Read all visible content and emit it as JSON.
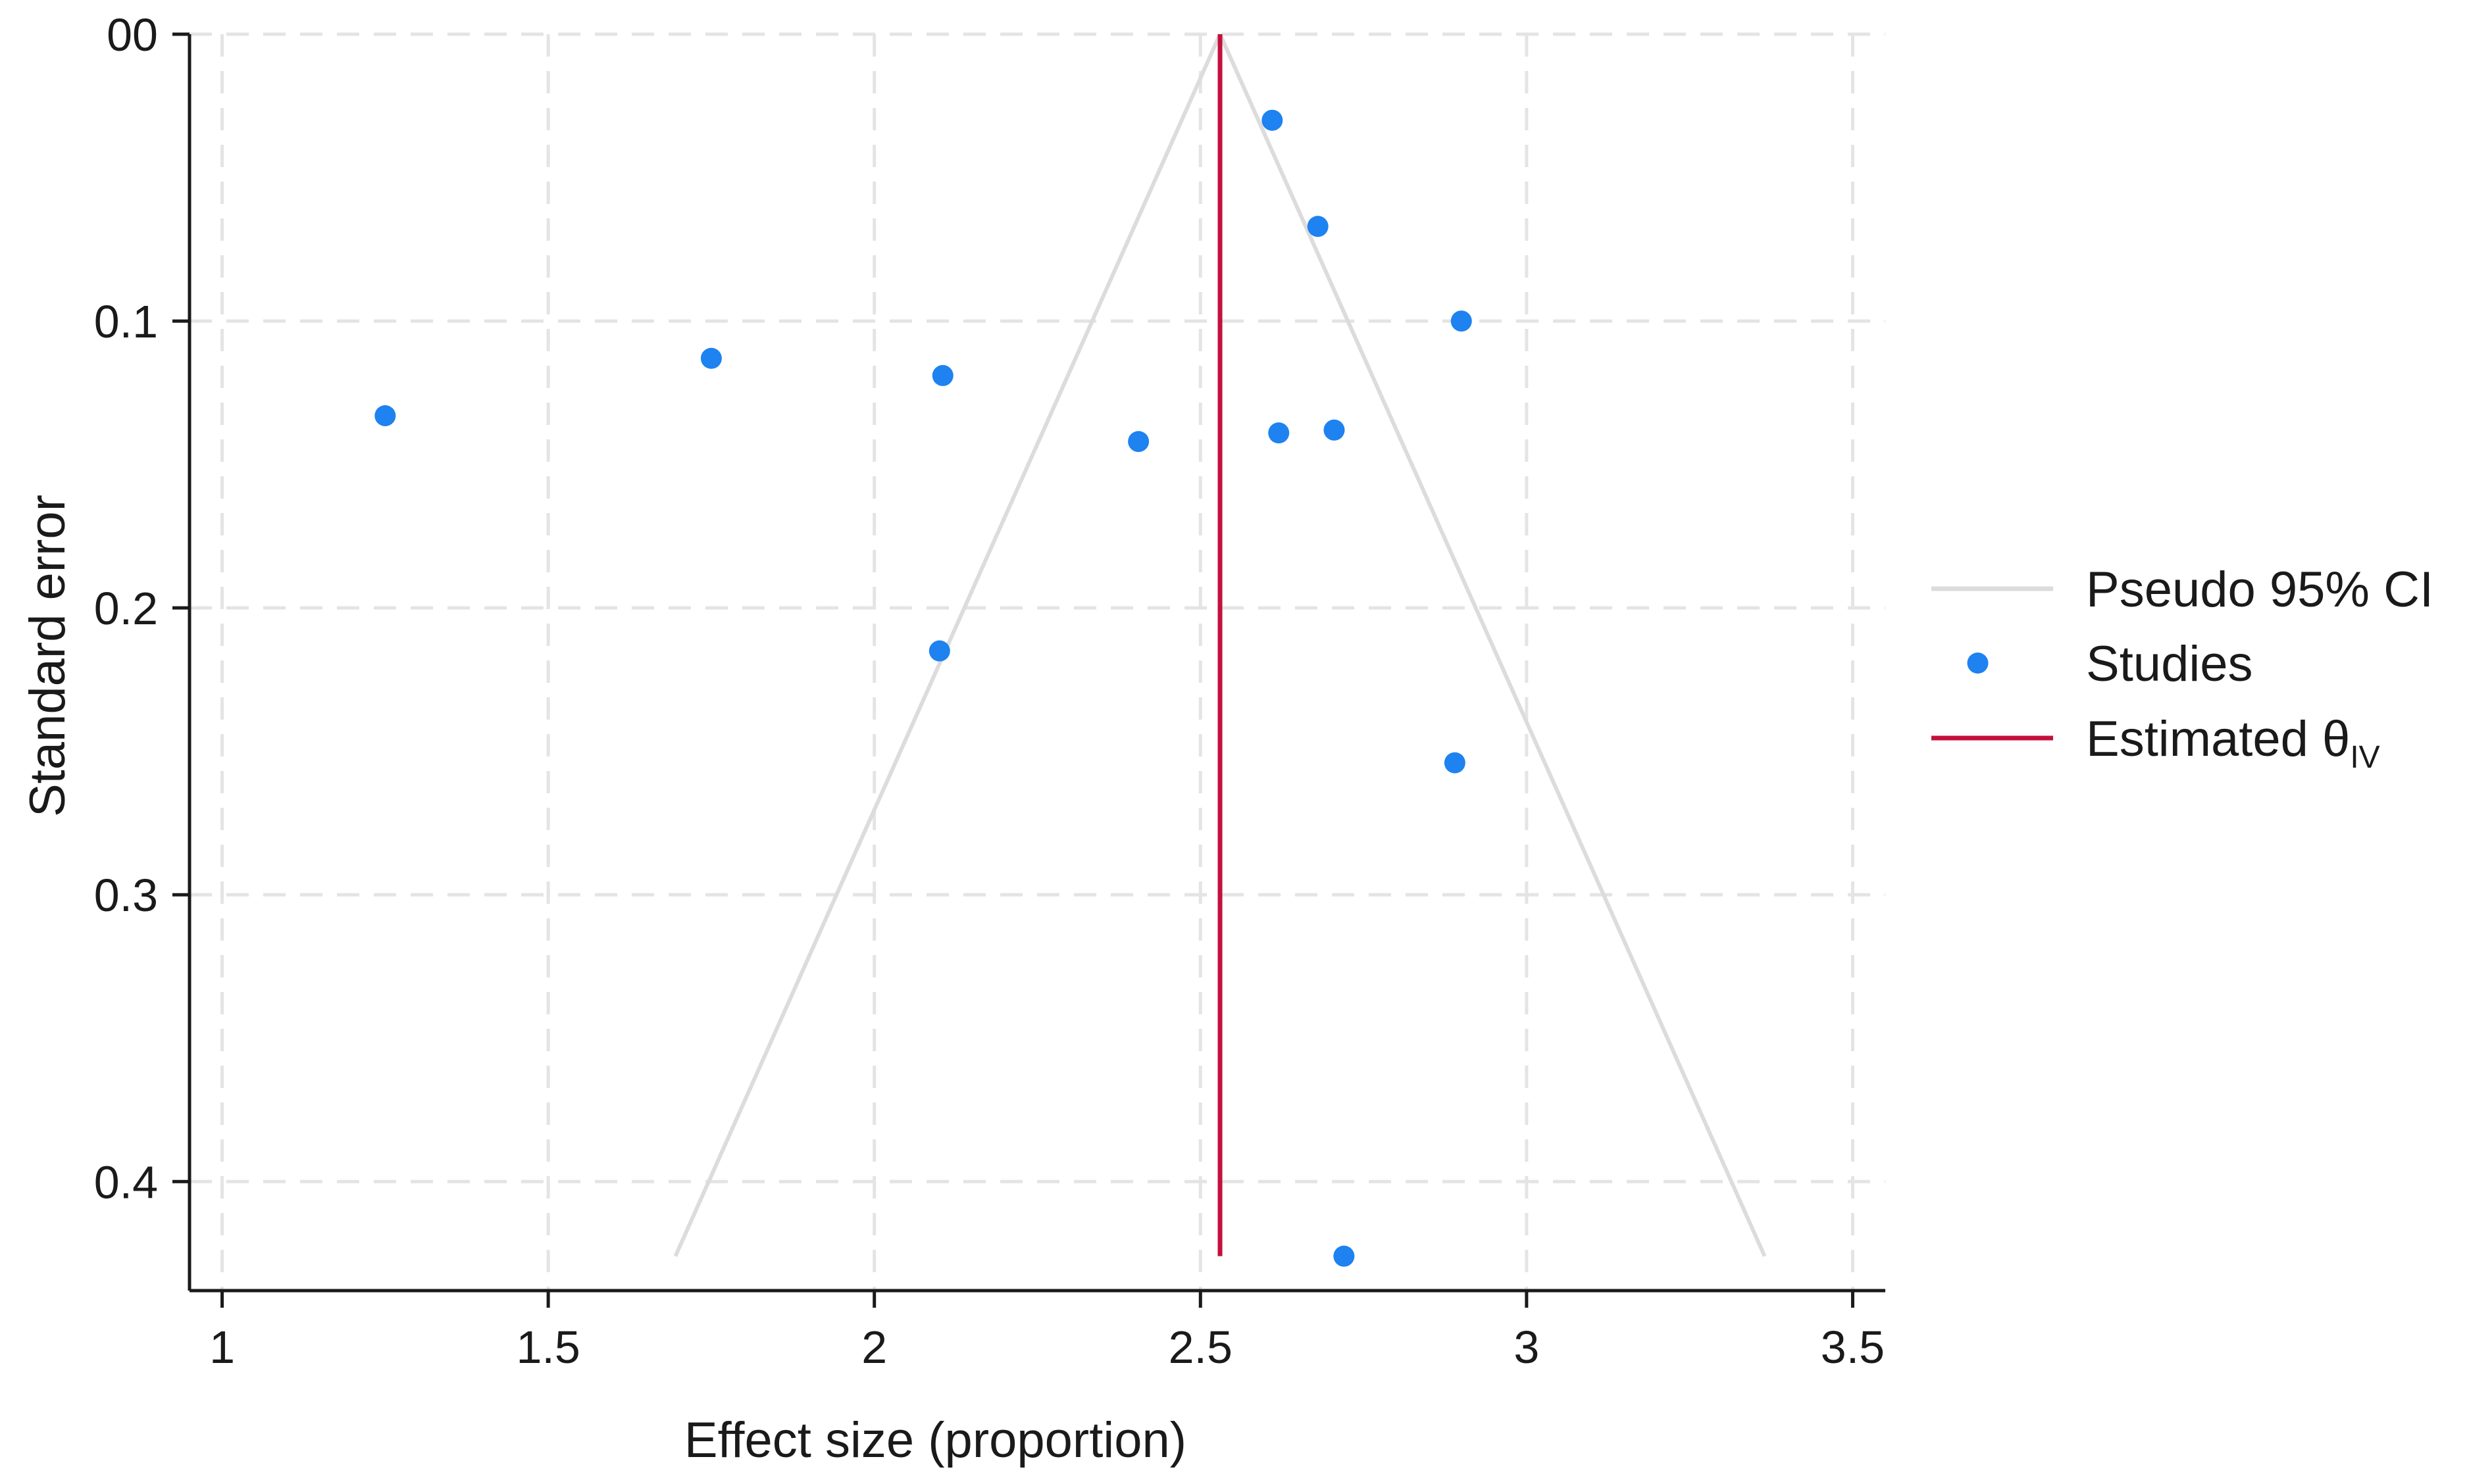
{
  "chart_data": {
    "type": "scatter",
    "title": "",
    "xlabel": "Effect size (proportion)",
    "ylabel": "Standard error",
    "xlim": [
      0.95,
      3.55
    ],
    "ylim": [
      0,
      0.438
    ],
    "y_inverted": true,
    "grid": true,
    "x_ticks": [
      1,
      1.5,
      2,
      2.5,
      3,
      3.5
    ],
    "x_tick_labels": [
      "1",
      "1.5",
      "2",
      "2.5",
      "3",
      "3.5"
    ],
    "y_ticks": [
      0,
      0.1,
      0.2,
      0.3,
      0.4
    ],
    "y_tick_labels": [
      "00",
      "0.1",
      "0.2",
      "0.3",
      "0.4"
    ],
    "legend_position": "right",
    "legend": [
      {
        "label": "Pseudo 95% CI",
        "sub": "",
        "kind": "line",
        "color": "#dcdcdc"
      },
      {
        "label": "Studies",
        "sub": "",
        "kind": "marker",
        "color": "#1e82f0"
      },
      {
        "label": "Estimated θ",
        "sub": "IV",
        "kind": "line",
        "color": "#c4103c"
      }
    ],
    "estimate": {
      "x": 2.53,
      "y_from": 0,
      "y_to": 0.426,
      "color": "#c4103c"
    },
    "pseudo_ci": {
      "apex": [
        2.53,
        0
      ],
      "left_base": [
        1.695,
        0.426
      ],
      "right_base": [
        3.365,
        0.426
      ],
      "color": "#dcdcdc"
    },
    "studies": {
      "color": "#1e82f0",
      "points": [
        {
          "x": 2.61,
          "y": 0.03
        },
        {
          "x": 2.68,
          "y": 0.067
        },
        {
          "x": 2.9,
          "y": 0.1
        },
        {
          "x": 1.75,
          "y": 0.113
        },
        {
          "x": 2.105,
          "y": 0.119
        },
        {
          "x": 1.25,
          "y": 0.133
        },
        {
          "x": 2.405,
          "y": 0.142
        },
        {
          "x": 2.62,
          "y": 0.139
        },
        {
          "x": 2.705,
          "y": 0.138
        },
        {
          "x": 2.1,
          "y": 0.215
        },
        {
          "x": 2.89,
          "y": 0.254
        },
        {
          "x": 2.72,
          "y": 0.426
        }
      ]
    }
  }
}
